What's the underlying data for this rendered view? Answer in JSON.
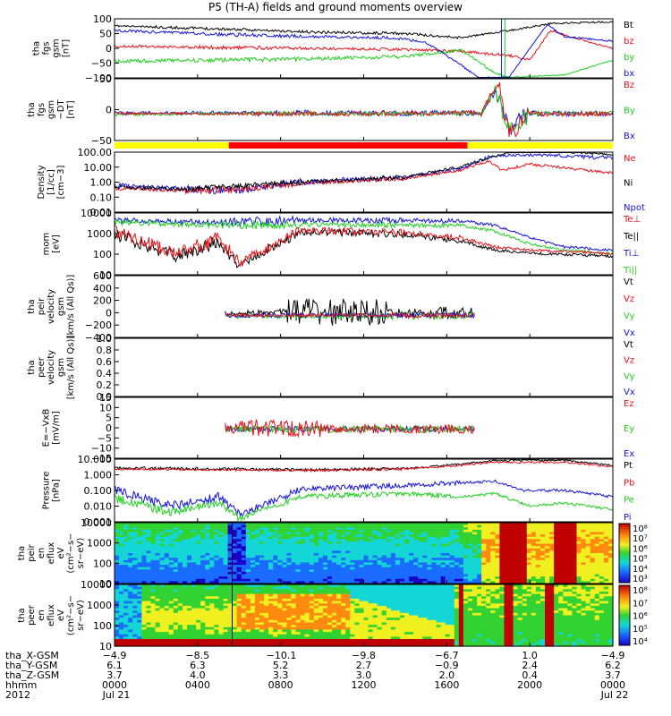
{
  "title": "P5 (TH-A) fields and ground moments overview",
  "colors": {
    "black": "#000000",
    "red": "#e8121a",
    "green": "#1fd01f",
    "blue": "#1414e0"
  },
  "chart_data": {
    "type": "line",
    "title": "P5 (TH-A) fields and ground moments overview",
    "x_range": [
      "0000",
      "2400"
    ],
    "xtick_times": [
      "0000",
      "0400",
      "0800",
      "1200",
      "1600",
      "2000",
      "0000"
    ],
    "panels": [
      {
        "id": "fgs-gsm",
        "ylabel": [
          "tha",
          "fgs",
          "gsm",
          "[nT]"
        ],
        "yticks": [
          "100",
          "50",
          "0",
          "−50",
          "−100"
        ],
        "legend": [
          "Bt",
          "bz",
          "by",
          "bx"
        ],
        "legend_colors": [
          "#000000",
          "#e8121a",
          "#1fd01f",
          "#1414e0"
        ]
      },
      {
        "id": "fgs-gsm-detrend",
        "ylabel": [
          "tha",
          "fgs",
          "gsm",
          "−DT",
          "[nT]"
        ],
        "yticks": [
          "50",
          "0",
          "−50"
        ],
        "legend": [
          "Bz",
          "By",
          "Bx"
        ],
        "legend_colors": [
          "#e8121a",
          "#1fd01f",
          "#1414e0"
        ]
      },
      {
        "id": "density",
        "ylabel": [
          "Density",
          "[1/cc]",
          "[cm−3]"
        ],
        "yticks": [
          "100.00",
          "10.00",
          "1.00",
          "0.10",
          "0.01"
        ],
        "legend": [
          "Ne",
          "Ni",
          "Npot"
        ],
        "legend_colors": [
          "#e8121a",
          "#000000",
          "#1414e0"
        ]
      },
      {
        "id": "temperature",
        "ylabel": [
          "mom",
          "[eV]"
        ],
        "yticks": [
          "10000",
          "1000",
          "100",
          "10"
        ],
        "legend": [
          "Te⊥",
          "Te||",
          "Ti⊥",
          "Ti||"
        ],
        "legend_colors": [
          "#e8121a",
          "#000000",
          "#1414e0",
          "#1fd01f"
        ]
      },
      {
        "id": "peir-velocity",
        "ylabel": [
          "tha",
          "peir",
          "velocity",
          "gsm",
          "[km/s (All Qs)]"
        ],
        "yticks": [
          "600",
          "400",
          "200",
          "0",
          "−200",
          "−400"
        ],
        "legend": [
          "Vt",
          "Vz",
          "Vy",
          "Vx"
        ],
        "legend_colors": [
          "#000000",
          "#e8121a",
          "#1fd01f",
          "#1414e0"
        ]
      },
      {
        "id": "peer-velocity",
        "ylabel": [
          "tha",
          "peer",
          "velocity",
          "gsm",
          "[km/s (All Qs)]"
        ],
        "yticks": [
          "1.0",
          "0.8",
          "0.6",
          "0.4",
          "0.2",
          "0.0"
        ],
        "legend": [
          "Vt",
          "Vz",
          "Vy",
          "Vx"
        ],
        "legend_colors": [
          "#000000",
          "#e8121a",
          "#1fd01f",
          "#1414e0"
        ]
      },
      {
        "id": "efield",
        "ylabel": [
          "E=−VxB",
          "[mV/m]"
        ],
        "yticks": [
          "15",
          "10",
          "5",
          "0",
          "−5",
          "−10",
          "−15"
        ],
        "legend": [
          "Ez",
          "Ey",
          "Ex"
        ],
        "legend_colors": [
          "#e8121a",
          "#1fd01f",
          "#1414e0"
        ]
      },
      {
        "id": "pressure",
        "ylabel": [
          "Pressure",
          "[nPa]"
        ],
        "yticks": [
          "10.000",
          "1.000",
          "0.100",
          "0.010",
          "0.001"
        ],
        "legend": [
          "Pt",
          "Pb",
          "Pe",
          "Pi"
        ],
        "legend_colors": [
          "#000000",
          "#e8121a",
          "#1fd01f",
          "#1414e0"
        ]
      },
      {
        "id": "peir-spectrogram",
        "type": "heatmap",
        "ylabel": [
          "tha",
          "peir",
          "en",
          "eflux",
          "eV",
          "(cm²−s−",
          "sr−eV)"
        ],
        "yticks": [
          "10000",
          "1000",
          "100",
          "10"
        ],
        "colorbar_labels": [
          "10⁸",
          "10⁷",
          "10⁶",
          "10⁵",
          "10⁴",
          "10³"
        ]
      },
      {
        "id": "peer-spectrogram",
        "type": "heatmap",
        "ylabel": [
          "tha",
          "peer",
          "en",
          "eflux",
          "eV",
          "(cm²−s−",
          "sr−eV)"
        ],
        "yticks": [
          "10000",
          "1000",
          "100",
          "10"
        ],
        "colorbar_labels": [
          "10⁸",
          "10⁷",
          "10⁶",
          "10⁵",
          "10⁴"
        ]
      }
    ],
    "status_bar": [
      {
        "from": "0000",
        "to": "0530",
        "color": "#ffff00"
      },
      {
        "from": "0530",
        "to": "1700",
        "color": "#ff0000"
      },
      {
        "from": "1700",
        "to": "2400",
        "color": "#ffff00"
      }
    ],
    "ephemeris": {
      "tha_X-GSM": [
        "−4.9",
        "−8.5",
        "−10.1",
        "−9.8",
        "−6.7",
        "1.0",
        "−4.9"
      ],
      "tha_Y-GSM": [
        "6.1",
        "6.3",
        "5.2",
        "2.7",
        "−0.9",
        "2.4",
        "6.2"
      ],
      "tha_Z-GSM": [
        "3.7",
        "4.0",
        "3.3",
        "3.0",
        "2.0",
        "0.4",
        "3.7"
      ],
      "hhmm": [
        "0000",
        "0400",
        "0800",
        "1200",
        "1600",
        "2000",
        "0000"
      ],
      "dates": [
        "Jul 21",
        "Jul 22"
      ]
    },
    "ephemeris_labels": [
      "tha_X-GSM",
      "tha_Y-GSM",
      "tha_Z-GSM",
      "hhmm",
      "2012"
    ]
  }
}
